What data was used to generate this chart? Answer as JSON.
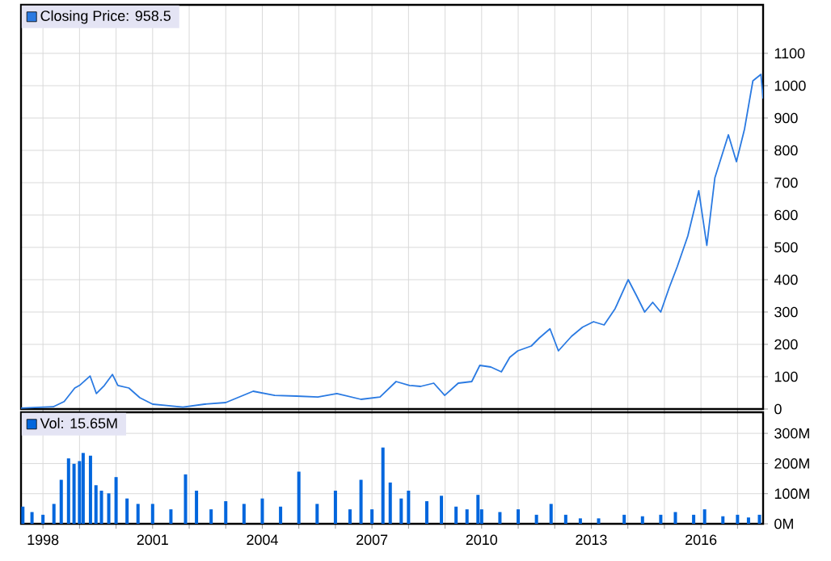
{
  "chart_data": [
    {
      "type": "line",
      "x": [
        1997.4,
        1998.28,
        1998.58,
        1998.87,
        1999.0,
        1999.29,
        1999.46,
        1999.68,
        1999.9,
        2000.05,
        2000.35,
        2000.65,
        2001.0,
        2001.38,
        2001.83,
        2002.42,
        2003.0,
        2003.75,
        2004.34,
        2004.93,
        2005.52,
        2006.04,
        2006.7,
        2007.22,
        2007.66,
        2008.03,
        2008.33,
        2008.69,
        2008.99,
        2009.36,
        2009.73,
        2009.95,
        2010.25,
        2010.54,
        2010.77,
        2010.99,
        2011.36,
        2011.58,
        2011.87,
        2012.1,
        2012.46,
        2012.76,
        2013.06,
        2013.35,
        2013.65,
        2014.01,
        2014.24,
        2014.46,
        2014.68,
        2014.9,
        2015.13,
        2015.35,
        2015.64,
        2015.94,
        2016.16,
        2016.38,
        2016.75,
        2016.97,
        2017.19,
        2017.42,
        2017.64,
        2017.7
      ],
      "series": [
        {
          "name": "Closing Price: 958.5",
          "color": "#2a7ae2",
          "values": [
            3,
            7,
            23,
            65,
            73,
            102,
            48,
            73,
            107,
            73,
            65,
            35,
            15,
            11,
            6,
            15,
            20,
            55,
            42,
            40,
            37,
            48,
            30,
            37,
            85,
            73,
            70,
            80,
            42,
            80,
            85,
            135,
            130,
            115,
            160,
            180,
            195,
            220,
            248,
            180,
            225,
            253,
            270,
            260,
            310,
            400,
            350,
            300,
            330,
            300,
            375,
            440,
            535,
            675,
            506,
            715,
            848,
            765,
            865,
            1015,
            1035,
            960
          ]
        }
      ],
      "xlim": [
        1997.4,
        2017.7
      ],
      "ylim": [
        0,
        1250
      ],
      "xticks": [
        {
          "value": 1998,
          "label": null
        },
        {
          "value": 1999,
          "label": null
        },
        {
          "value": 2000,
          "label": null
        },
        {
          "value": 2001,
          "label": null
        },
        {
          "value": 2002,
          "label": null
        },
        {
          "value": 2003,
          "label": null
        },
        {
          "value": 2004,
          "label": null
        },
        {
          "value": 2005,
          "label": null
        },
        {
          "value": 2006,
          "label": null
        },
        {
          "value": 2007,
          "label": null
        },
        {
          "value": 2008,
          "label": null
        },
        {
          "value": 2009,
          "label": null
        },
        {
          "value": 2010,
          "label": null
        },
        {
          "value": 2011,
          "label": null
        },
        {
          "value": 2012,
          "label": null
        },
        {
          "value": 2013,
          "label": null
        },
        {
          "value": 2014,
          "label": null
        },
        {
          "value": 2015,
          "label": null
        },
        {
          "value": 2016,
          "label": null
        },
        {
          "value": 2017,
          "label": null
        }
      ],
      "yticks": [
        0,
        100,
        200,
        300,
        400,
        500,
        600,
        700,
        800,
        900,
        1000,
        1100
      ],
      "grid": true,
      "legend": "top left",
      "tick_labels": "y"
    },
    {
      "type": "bar",
      "x": [
        1997.45,
        1997.7,
        1998.0,
        1998.3,
        1998.5,
        1998.7,
        1998.85,
        1999.0,
        1999.1,
        1999.3,
        1999.45,
        1999.6,
        1999.8,
        2000.0,
        2000.3,
        2000.6,
        2001.0,
        2001.5,
        2001.9,
        2002.2,
        2002.6,
        2003.0,
        2003.5,
        2004.0,
        2004.5,
        2005.0,
        2005.5,
        2006.0,
        2006.4,
        2006.7,
        2007.0,
        2007.3,
        2007.5,
        2007.8,
        2008.0,
        2008.5,
        2008.9,
        2009.3,
        2009.6,
        2009.9,
        2010.0,
        2010.5,
        2011.0,
        2011.5,
        2011.9,
        2012.3,
        2012.7,
        2013.2,
        2013.9,
        2014.4,
        2014.9,
        2015.3,
        2015.8,
        2016.1,
        2016.6,
        2017.0,
        2017.3,
        2017.6
      ],
      "series": [
        {
          "name": "Vol: 15.65M",
          "color": "#0066dd",
          "values": [
            57,
            39,
            30,
            66,
            146,
            217,
            199,
            208,
            235,
            226,
            128,
            110,
            101,
            155,
            84,
            66,
            66,
            48,
            164,
            110,
            48,
            75,
            66,
            84,
            57,
            173,
            66,
            110,
            48,
            146,
            48,
            253,
            137,
            84,
            110,
            75,
            93,
            57,
            48,
            96,
            48,
            39,
            48,
            30,
            66,
            30,
            18,
            18,
            30,
            25,
            30,
            39,
            30,
            48,
            25,
            30,
            21,
            30
          ]
        }
      ],
      "xlim": [
        1997.4,
        2017.7
      ],
      "ylim": [
        0,
        370
      ],
      "xticks": [
        {
          "value": 1998,
          "label": "1998"
        },
        {
          "value": 1999,
          "label": null
        },
        {
          "value": 2000,
          "label": null
        },
        {
          "value": 2001,
          "label": "2001"
        },
        {
          "value": 2002,
          "label": null
        },
        {
          "value": 2003,
          "label": null
        },
        {
          "value": 2004,
          "label": "2004"
        },
        {
          "value": 2005,
          "label": null
        },
        {
          "value": 2006,
          "label": null
        },
        {
          "value": 2007,
          "label": "2007"
        },
        {
          "value": 2008,
          "label": null
        },
        {
          "value": 2009,
          "label": null
        },
        {
          "value": 2010,
          "label": "2010"
        },
        {
          "value": 2011,
          "label": null
        },
        {
          "value": 2012,
          "label": null
        },
        {
          "value": 2013,
          "label": "2013"
        },
        {
          "value": 2014,
          "label": null
        },
        {
          "value": 2015,
          "label": null
        },
        {
          "value": 2016,
          "label": "2016"
        },
        {
          "value": 2017,
          "label": null
        }
      ],
      "yticks": [
        {
          "value": 0,
          "label": "0M"
        },
        {
          "value": 100,
          "label": "100M"
        },
        {
          "value": 200,
          "label": "200M"
        },
        {
          "value": 300,
          "label": "300M"
        }
      ],
      "grid": true,
      "legend": "top left"
    }
  ]
}
